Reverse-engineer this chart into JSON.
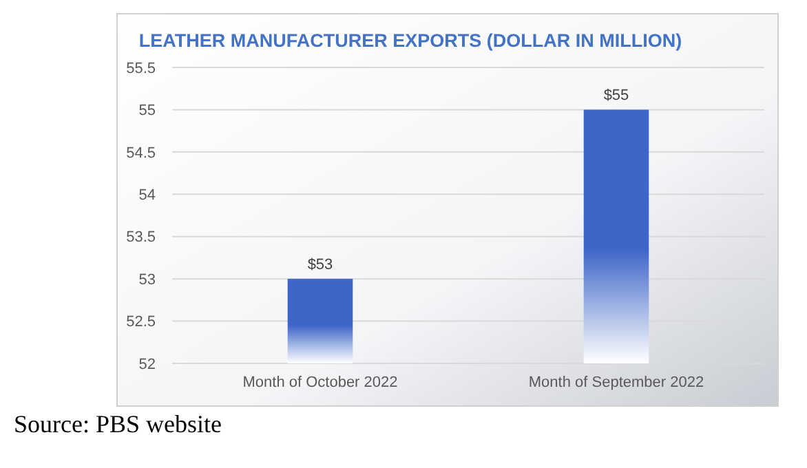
{
  "chart_data": {
    "type": "bar",
    "title": "LEATHER MANUFACTURER EXPORTS (DOLLAR IN MILLION)",
    "categories": [
      "Month of October 2022",
      "Month of September 2022"
    ],
    "values": [
      53,
      55
    ],
    "value_labels": [
      "$53",
      "$55"
    ],
    "color": "#3e66c8",
    "ylim": [
      52,
      55.5
    ],
    "yticks": [
      52,
      52.5,
      53,
      53.5,
      54,
      54.5,
      55,
      55.5
    ],
    "grid": "y",
    "annotations": [
      "Source: PBS website"
    ]
  }
}
